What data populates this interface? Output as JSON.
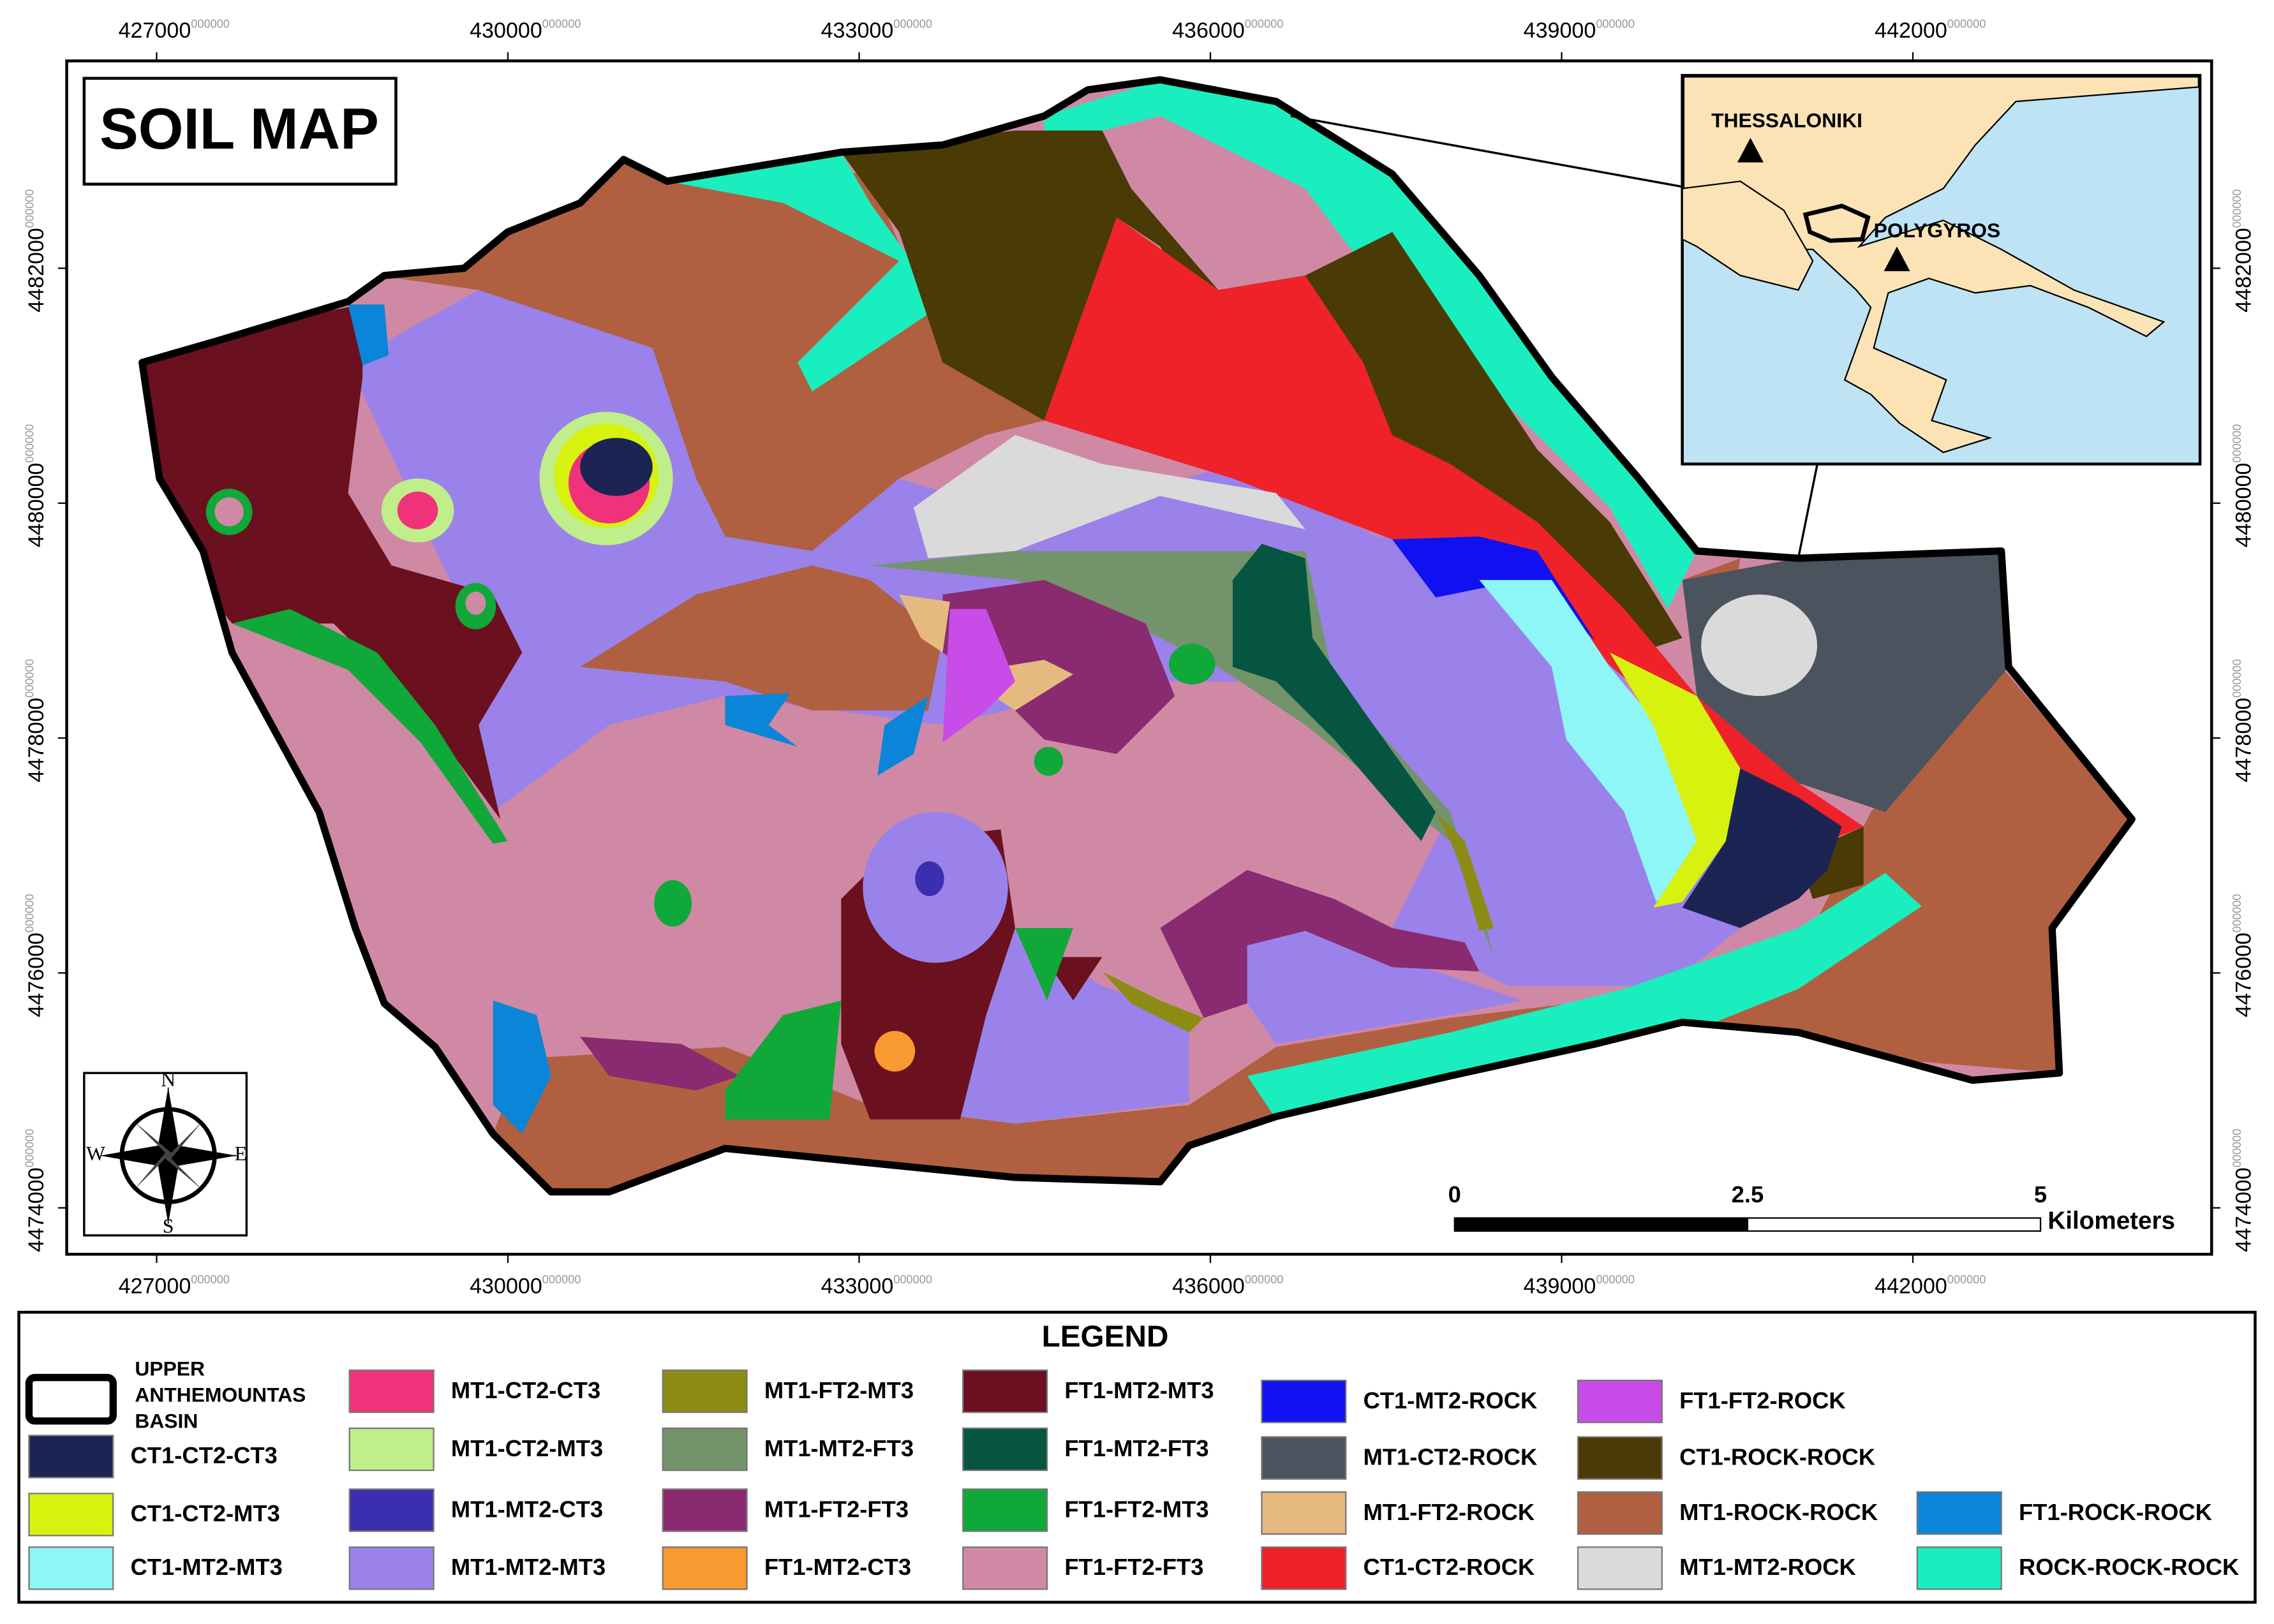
{
  "title": "SOIL MAP",
  "x_ticks": [
    {
      "main": 427000,
      "frac": "000000"
    },
    {
      "main": 430000,
      "frac": "000000"
    },
    {
      "main": 433000,
      "frac": "000000"
    },
    {
      "main": 436000,
      "frac": "000000"
    },
    {
      "main": 439000,
      "frac": "000000"
    },
    {
      "main": 442000,
      "frac": "000000"
    }
  ],
  "y_ticks": [
    {
      "main": 4474000,
      "frac": "000000"
    },
    {
      "main": 4476000,
      "frac": "000000"
    },
    {
      "main": 4478000,
      "frac": "000000"
    },
    {
      "main": 4480000,
      "frac": "000000"
    },
    {
      "main": 4482000,
      "frac": "000000"
    }
  ],
  "inset": {
    "labels": [
      "THESSALONIKI",
      "POLYGYROS"
    ]
  },
  "scale_bar": {
    "ticks": [
      "0",
      "2.5",
      "5"
    ],
    "unit": "Kilometers"
  },
  "compass": {
    "n": "N",
    "s": "S",
    "e": "E",
    "w": "W"
  },
  "legend": {
    "title": "LEGEND",
    "basin_label": [
      "UPPER",
      "ANTHEMOUNTAS",
      "BASIN"
    ],
    "items": [
      {
        "label": "CT1-CT2-CT3",
        "color": "#1c2454"
      },
      {
        "label": "CT1-CT2-MT3",
        "color": "#d8f20f"
      },
      {
        "label": "CT1-MT2-MT3",
        "color": "#8ef6f6"
      },
      {
        "label": "MT1-CT2-CT3",
        "color": "#f0327a"
      },
      {
        "label": "MT1-CT2-MT3",
        "color": "#bfee8a"
      },
      {
        "label": "MT1-MT2-CT3",
        "color": "#3b2fb0"
      },
      {
        "label": "MT1-MT2-MT3",
        "color": "#9a82ea"
      },
      {
        "label": "MT1-FT2-MT3",
        "color": "#8c8c14"
      },
      {
        "label": "MT1-MT2-FT3",
        "color": "#73946a"
      },
      {
        "label": "MT1-FT2-FT3",
        "color": "#8a2a70"
      },
      {
        "label": "FT1-MT2-CT3",
        "color": "#f89a30"
      },
      {
        "label": "FT1-MT2-MT3",
        "color": "#6a101e"
      },
      {
        "label": "FT1-MT2-FT3",
        "color": "#065540"
      },
      {
        "label": "FT1-FT2-MT3",
        "color": "#10a838"
      },
      {
        "label": "FT1-FT2-FT3",
        "color": "#d089a4"
      },
      {
        "label": "CT1-MT2-ROCK",
        "color": "#1010f0"
      },
      {
        "label": "MT1-CT2-ROCK",
        "color": "#4b535e"
      },
      {
        "label": "MT1-FT2-ROCK",
        "color": "#e6b980"
      },
      {
        "label": "CT1-CT2-ROCK",
        "color": "#ee2228"
      },
      {
        "label": "FT1-FT2-ROCK",
        "color": "#c84ce8"
      },
      {
        "label": "CT1-ROCK-ROCK",
        "color": "#4a3a06"
      },
      {
        "label": "MT1-ROCK-ROCK",
        "color": "#b06040"
      },
      {
        "label": "MT1-MT2-ROCK",
        "color": "#dadada"
      },
      {
        "label": "FT1-ROCK-ROCK",
        "color": "#0a85d8"
      },
      {
        "label": "ROCK-ROCK-ROCK",
        "color": "#1aeebe"
      }
    ]
  }
}
